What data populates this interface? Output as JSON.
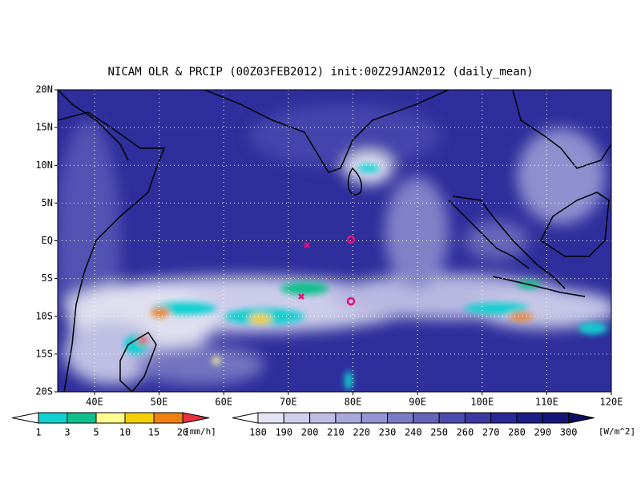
{
  "title": "NICAM OLR & PRCIP (00Z03FEB2012) init:00Z29JAN2012 (daily_mean)",
  "lat_labels": [
    "20N",
    "15N",
    "10N",
    "5N",
    "EQ",
    "5S",
    "10S",
    "15S",
    "20S"
  ],
  "lon_labels": [
    "40E",
    "50E",
    "60E",
    "70E",
    "80E",
    "90E",
    "100E",
    "110E",
    "120E"
  ],
  "precip_colorbar": {
    "labels": [
      "1",
      "3",
      "5",
      "10",
      "15",
      "20"
    ],
    "unit": "[mm/h]",
    "colors": [
      "#ffffff",
      "#10d0d0",
      "#10c08c",
      "#ffff90",
      "#f4d000",
      "#f08010",
      "#e83040"
    ]
  },
  "olr_colorbar": {
    "labels": [
      "180",
      "190",
      "200",
      "210",
      "220",
      "230",
      "240",
      "250",
      "260",
      "270",
      "280",
      "290",
      "300"
    ],
    "unit": "[W/m^2]",
    "colors": [
      "#ffffff",
      "#e4e4f4",
      "#d0d0ec",
      "#bcbce4",
      "#a8a8dc",
      "#9494d2",
      "#7c7cc6",
      "#6464ba",
      "#4c4cae",
      "#3a3aa2",
      "#2a2a96",
      "#1e1e88",
      "#161678",
      "#0c0c60"
    ]
  }
}
